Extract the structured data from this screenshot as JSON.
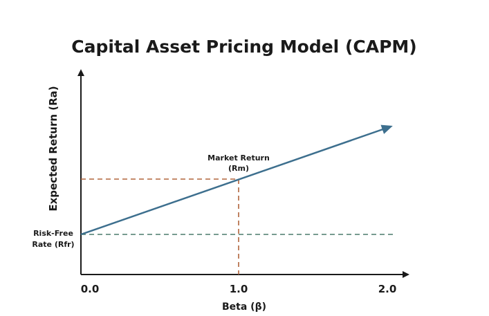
{
  "title": "Capital Asset Pricing Model (CAPM)",
  "y_axis_label": "Expected Return (Ra)",
  "x_axis_label": "Beta (β)",
  "x_tick_labels": [
    "0.0",
    "1.0",
    "2.0"
  ],
  "market_return_label": [
    "Market Return",
    "(Rm)"
  ],
  "risk_free_label": [
    "Risk-Free",
    "Rate (Rfr)"
  ]
}
